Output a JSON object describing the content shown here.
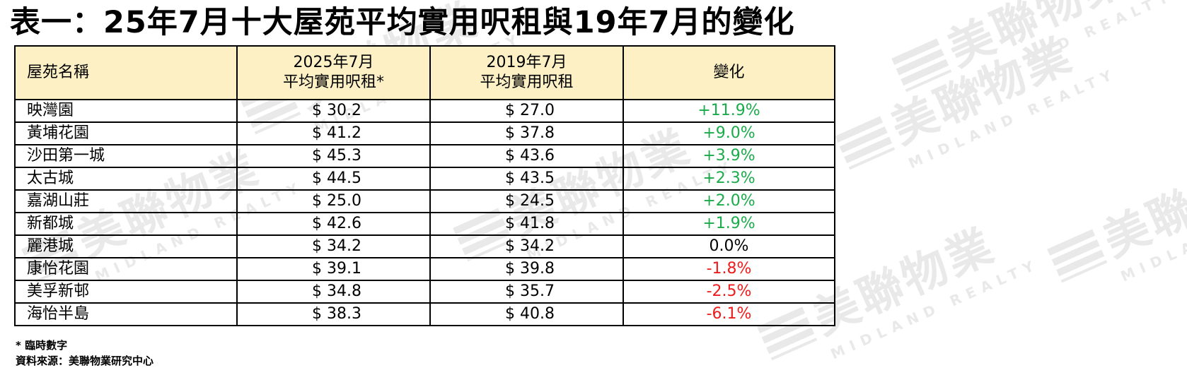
{
  "title": "表一：25年7月十大屋苑平均實用呎租與19年7月的變化",
  "table": {
    "headers": {
      "estate": "屋苑名稱",
      "rent_2025_line1": "2025年7月",
      "rent_2025_line2": "平均實用呎租*",
      "rent_2019_line1": "2019年7月",
      "rent_2019_line2": "平均實用呎租",
      "change": "變化"
    },
    "rows": [
      {
        "estate": "映灣園",
        "rent_2025": "$ 30.2",
        "rent_2019": "$ 27.0",
        "change": "+11.9%",
        "trend": "pos"
      },
      {
        "estate": "黃埔花園",
        "rent_2025": "$ 41.2",
        "rent_2019": "$ 37.8",
        "change": "+9.0%",
        "trend": "pos"
      },
      {
        "estate": "沙田第一城",
        "rent_2025": "$ 45.3",
        "rent_2019": "$ 43.6",
        "change": "+3.9%",
        "trend": "pos"
      },
      {
        "estate": "太古城",
        "rent_2025": "$ 44.5",
        "rent_2019": "$ 43.5",
        "change": "+2.3%",
        "trend": "pos"
      },
      {
        "estate": "嘉湖山莊",
        "rent_2025": "$ 25.0",
        "rent_2019": "$ 24.5",
        "change": "+2.0%",
        "trend": "pos"
      },
      {
        "estate": "新都城",
        "rent_2025": "$ 42.6",
        "rent_2019": "$ 41.8",
        "change": "+1.9%",
        "trend": "pos"
      },
      {
        "estate": "麗港城",
        "rent_2025": "$ 34.2",
        "rent_2019": "$ 34.2",
        "change": "0.0%",
        "trend": "zero"
      },
      {
        "estate": "康怡花園",
        "rent_2025": "$ 39.1",
        "rent_2019": "$ 39.8",
        "change": "-1.8%",
        "trend": "neg"
      },
      {
        "estate": "美孚新邨",
        "rent_2025": "$ 34.8",
        "rent_2019": "$ 35.7",
        "change": "-2.5%",
        "trend": "neg"
      },
      {
        "estate": "海怡半島",
        "rent_2025": "$ 38.3",
        "rent_2019": "$ 40.8",
        "change": "-6.1%",
        "trend": "neg"
      }
    ]
  },
  "notes": {
    "provisional": "* 臨時數字",
    "source": "資料來源：美聯物業研究中心"
  },
  "watermark": {
    "cn": "美聯物業",
    "en": "MIDLAND REALTY"
  },
  "colors": {
    "header_bg": "#fdf0c5",
    "positive": "#1aab4a",
    "negative": "#ee1c1c",
    "watermark": "#e9e9e9"
  }
}
